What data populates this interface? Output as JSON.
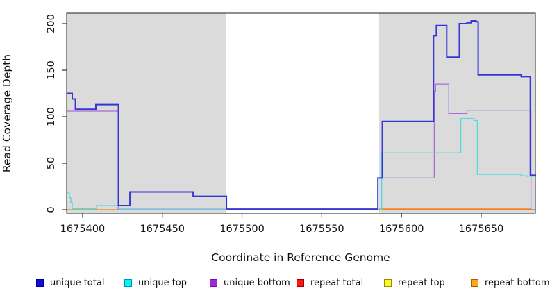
{
  "figure": {
    "background": "#ffffff",
    "shaded_region_color": "#dbdbdb",
    "axis_color": "#333333",
    "tick_label_color": "#111111"
  },
  "chart_data": {
    "type": "line",
    "subtype": "step-after",
    "title": "",
    "xlabel": "Coordinate in Reference Genome",
    "ylabel": "Read Coverage Depth",
    "xlim": [
      1675390,
      1675684
    ],
    "ylim": [
      0,
      205
    ],
    "x_ticks": [
      "1675400",
      "1675450",
      "1675500",
      "1675550",
      "1675600",
      "1675650"
    ],
    "x_tick_values": [
      1675400,
      1675450,
      1675500,
      1675550,
      1675600,
      1675650
    ],
    "y_ticks": [
      "0",
      "50",
      "100",
      "150",
      "200"
    ],
    "y_tick_values": [
      0,
      50,
      100,
      150,
      200
    ],
    "grid": false,
    "legend_position": "bottom",
    "shaded_x_regions": [
      [
        1675390,
        1675490
      ],
      [
        1675586,
        1675684
      ]
    ],
    "series": [
      {
        "name": "repeat top",
        "line_color": "#f2e63c",
        "legend_fill": "#fff626",
        "legend_border": "#8f8f00",
        "line_width": 1.3,
        "segments": [
          [
            [
              1675390,
              0
            ],
            [
              1675684,
              0
            ]
          ]
        ]
      },
      {
        "name": "repeat total",
        "line_color": "#e0506e",
        "legend_fill": "#ff1414",
        "legend_border": "#990000",
        "line_width": 1.3,
        "segments": [
          [
            [
              1675390,
              0
            ],
            [
              1675684,
              0
            ]
          ]
        ]
      },
      {
        "name": "repeat bottom",
        "line_color": "#f79d20",
        "legend_fill": "#ffa51e",
        "legend_border": "#a06000",
        "line_width": 1.4,
        "segments": [
          [
            [
              1675390,
              0
            ],
            [
              1675422.7,
              0
            ]
          ],
          [
            [
              1675586,
              1
            ],
            [
              1675681,
              1
            ]
          ]
        ]
      },
      {
        "name": "unique bottom",
        "line_color": "#ab68d8",
        "legend_fill": "#a228e0",
        "legend_border": "#6a14a0",
        "line_width": 1.3,
        "segments": [
          [
            [
              1675390,
              106
            ],
            [
              1675422.3,
              0.5
            ],
            [
              1675585.2,
              34
            ],
            [
              1675620.6,
              127
            ],
            [
              1675621.4,
              135
            ],
            [
              1675629.7,
              103.5
            ],
            [
              1675641.1,
              107
            ],
            [
              1675681.2,
              0
            ],
            [
              1675684,
              0
            ]
          ]
        ]
      },
      {
        "name": "unique top",
        "line_color": "#4fdbe4",
        "legend_fill": "#00f5ff",
        "legend_border": "#009aa8",
        "line_width": 1.3,
        "segments": [
          [
            [
              1675390,
              18
            ],
            [
              1675391.7,
              13
            ],
            [
              1675392.6,
              8
            ],
            [
              1675393.5,
              1
            ],
            [
              1675408.7,
              4.5
            ],
            [
              1675422.7,
              0.3
            ],
            [
              1675587.6,
              61
            ],
            [
              1675637.2,
              98
            ],
            [
              1675645.4,
              96
            ],
            [
              1675647.6,
              38
            ],
            [
              1675675,
              36.5
            ],
            [
              1675678.6,
              36
            ],
            [
              1675684,
              36
            ]
          ]
        ]
      },
      {
        "name": "unique total",
        "line_color": "#3535d6",
        "legend_fill": "#0f0fe8",
        "legend_border": "#000080",
        "line_width": 2,
        "segments": [
          [
            [
              1675390,
              125
            ],
            [
              1675393.5,
              119
            ],
            [
              1675395.5,
              108
            ],
            [
              1675408.3,
              113
            ],
            [
              1675422.5,
              4.5
            ],
            [
              1675429.7,
              19
            ],
            [
              1675469.3,
              14.5
            ],
            [
              1675490.2,
              0.7
            ],
            [
              1675585.2,
              34
            ],
            [
              1675588,
              95
            ],
            [
              1675620.1,
              187
            ],
            [
              1675621.9,
              198
            ],
            [
              1675628.4,
              164
            ],
            [
              1675636.3,
              200
            ],
            [
              1675641,
              201
            ],
            [
              1675643.7,
              203
            ],
            [
              1675646.8,
              202
            ],
            [
              1675648.1,
              145
            ],
            [
              1675675.1,
              143
            ],
            [
              1675680.8,
              37
            ],
            [
              1675684,
              36
            ]
          ]
        ]
      }
    ],
    "legend_order": [
      "unique total",
      "unique top",
      "unique bottom",
      "repeat total",
      "repeat top",
      "repeat bottom"
    ]
  }
}
